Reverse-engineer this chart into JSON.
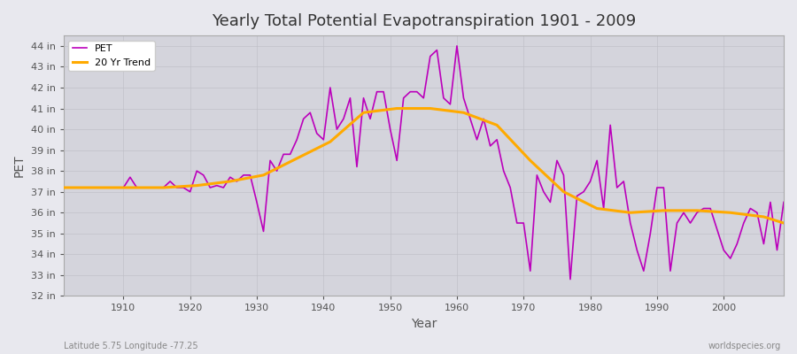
{
  "title": "Yearly Total Potential Evapotranspiration 1901 - 2009",
  "xlabel": "Year",
  "ylabel": "PET",
  "footer_left": "Latitude 5.75 Longitude -77.25",
  "footer_right": "worldspecies.org",
  "pet_color": "#bb00bb",
  "trend_color": "#ffaa00",
  "background_color": "#e8e8ee",
  "plot_bg_color": "#d4d4dc",
  "grid_color": "#c0c0c8",
  "ylim": [
    32,
    44.5
  ],
  "ytick_labels": [
    "32 in",
    "33 in",
    "34 in",
    "35 in",
    "36 in",
    "37 in",
    "38 in",
    "39 in",
    "40 in",
    "41 in",
    "42 in",
    "43 in",
    "44 in"
  ],
  "ytick_values": [
    32,
    33,
    34,
    35,
    36,
    37,
    38,
    39,
    40,
    41,
    42,
    43,
    44
  ],
  "xlim": [
    1901,
    2009
  ],
  "xtick_values": [
    1910,
    1920,
    1930,
    1940,
    1950,
    1960,
    1970,
    1980,
    1990,
    2000
  ],
  "years": [
    1901,
    1902,
    1903,
    1904,
    1905,
    1906,
    1907,
    1908,
    1909,
    1910,
    1911,
    1912,
    1913,
    1914,
    1915,
    1916,
    1917,
    1918,
    1919,
    1920,
    1921,
    1922,
    1923,
    1924,
    1925,
    1926,
    1927,
    1928,
    1929,
    1930,
    1931,
    1932,
    1933,
    1934,
    1935,
    1936,
    1937,
    1938,
    1939,
    1940,
    1941,
    1942,
    1943,
    1944,
    1945,
    1946,
    1947,
    1948,
    1949,
    1950,
    1951,
    1952,
    1953,
    1954,
    1955,
    1956,
    1957,
    1958,
    1959,
    1960,
    1961,
    1962,
    1963,
    1964,
    1965,
    1966,
    1967,
    1968,
    1969,
    1970,
    1971,
    1972,
    1973,
    1974,
    1975,
    1976,
    1977,
    1978,
    1979,
    1980,
    1981,
    1982,
    1983,
    1984,
    1985,
    1986,
    1987,
    1988,
    1989,
    1990,
    1991,
    1992,
    1993,
    1994,
    1995,
    1996,
    1997,
    1998,
    1999,
    2000,
    2001,
    2002,
    2003,
    2004,
    2005,
    2006,
    2007,
    2008,
    2009
  ],
  "pet_values": [
    37.2,
    37.2,
    37.2,
    37.2,
    37.2,
    37.2,
    37.2,
    37.2,
    37.2,
    37.2,
    37.7,
    37.2,
    37.2,
    37.2,
    37.2,
    37.2,
    37.5,
    37.2,
    37.2,
    37.0,
    38.0,
    37.8,
    37.2,
    37.3,
    37.2,
    37.7,
    37.5,
    37.8,
    37.8,
    36.5,
    35.1,
    38.5,
    38.0,
    38.8,
    38.8,
    39.5,
    40.5,
    40.8,
    39.8,
    39.5,
    42.0,
    40.0,
    40.5,
    41.5,
    38.2,
    41.5,
    40.5,
    41.8,
    41.8,
    40.0,
    38.5,
    41.5,
    41.8,
    41.8,
    41.5,
    43.5,
    43.8,
    41.5,
    41.2,
    44.0,
    41.5,
    40.5,
    39.5,
    40.5,
    39.2,
    39.5,
    38.0,
    37.2,
    35.5,
    35.5,
    33.2,
    37.8,
    37.0,
    36.5,
    38.5,
    37.8,
    32.8,
    36.8,
    37.0,
    37.5,
    38.5,
    36.2,
    40.2,
    37.2,
    37.5,
    35.5,
    34.2,
    33.2,
    35.0,
    37.2,
    37.2,
    33.2,
    35.5,
    36.0,
    35.5,
    36.0,
    36.2,
    36.2,
    35.2,
    34.2,
    33.8,
    34.5,
    35.5,
    36.2,
    36.0,
    34.5,
    36.5,
    34.2,
    36.5
  ],
  "trend_years": [
    1901,
    1906,
    1911,
    1916,
    1921,
    1926,
    1931,
    1936,
    1941,
    1946,
    1951,
    1956,
    1961,
    1966,
    1971,
    1976,
    1981,
    1986,
    1991,
    1996,
    2001,
    2006,
    2009
  ],
  "trend_values": [
    37.2,
    37.2,
    37.2,
    37.2,
    37.3,
    37.5,
    37.8,
    38.6,
    39.4,
    40.8,
    41.0,
    41.0,
    40.8,
    40.2,
    38.5,
    37.0,
    36.2,
    36.0,
    36.1,
    36.1,
    36.0,
    35.8,
    35.5
  ]
}
